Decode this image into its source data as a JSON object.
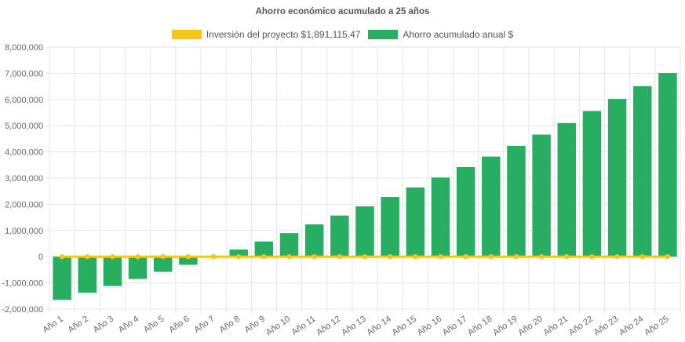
{
  "chart_data": {
    "type": "bar",
    "title": "Ahorro económico acumulado a 25 años",
    "xlabel": "",
    "ylabel": "",
    "ylim": [
      -2000000,
      8000000
    ],
    "yticks": [
      "8,000,000",
      "7,000,000",
      "6,000,000",
      "5,000,000",
      "4,000,000",
      "3,000,000",
      "2,000,000",
      "1,000,000",
      "0",
      "-1,000,000",
      "-2,000,000"
    ],
    "categories": [
      "Año 1",
      "Año 2",
      "Año 3",
      "Año 4",
      "Año 5",
      "Año 6",
      "Año 7",
      "Año 8",
      "Año 9",
      "Año 10",
      "Año 11",
      "Año 12",
      "Año 13",
      "Año 14",
      "Año 15",
      "Año 16",
      "Año 17",
      "Año 18",
      "Año 19",
      "Año 20",
      "Año 21",
      "Año 22",
      "Año 23",
      "Año 24",
      "Año 25"
    ],
    "grid": true,
    "legend_position": "top",
    "series": [
      {
        "name": "Inversión del proyecto $1,891,115.47",
        "type": "line",
        "color": "#f5c518",
        "values": [
          0,
          0,
          0,
          0,
          0,
          0,
          0,
          0,
          0,
          0,
          0,
          0,
          0,
          0,
          0,
          0,
          0,
          0,
          0,
          0,
          0,
          0,
          0,
          0,
          0
        ]
      },
      {
        "name": "Ahorro acumulado anual $",
        "type": "bar",
        "color": "#27ae60",
        "values": [
          -1650000,
          -1380000,
          -1120000,
          -850000,
          -580000,
          -310000,
          0,
          270000,
          580000,
          900000,
          1230000,
          1570000,
          1920000,
          2280000,
          2640000,
          3020000,
          3420000,
          3820000,
          4230000,
          4660000,
          5100000,
          5560000,
          6020000,
          6510000,
          7010000
        ]
      }
    ]
  }
}
